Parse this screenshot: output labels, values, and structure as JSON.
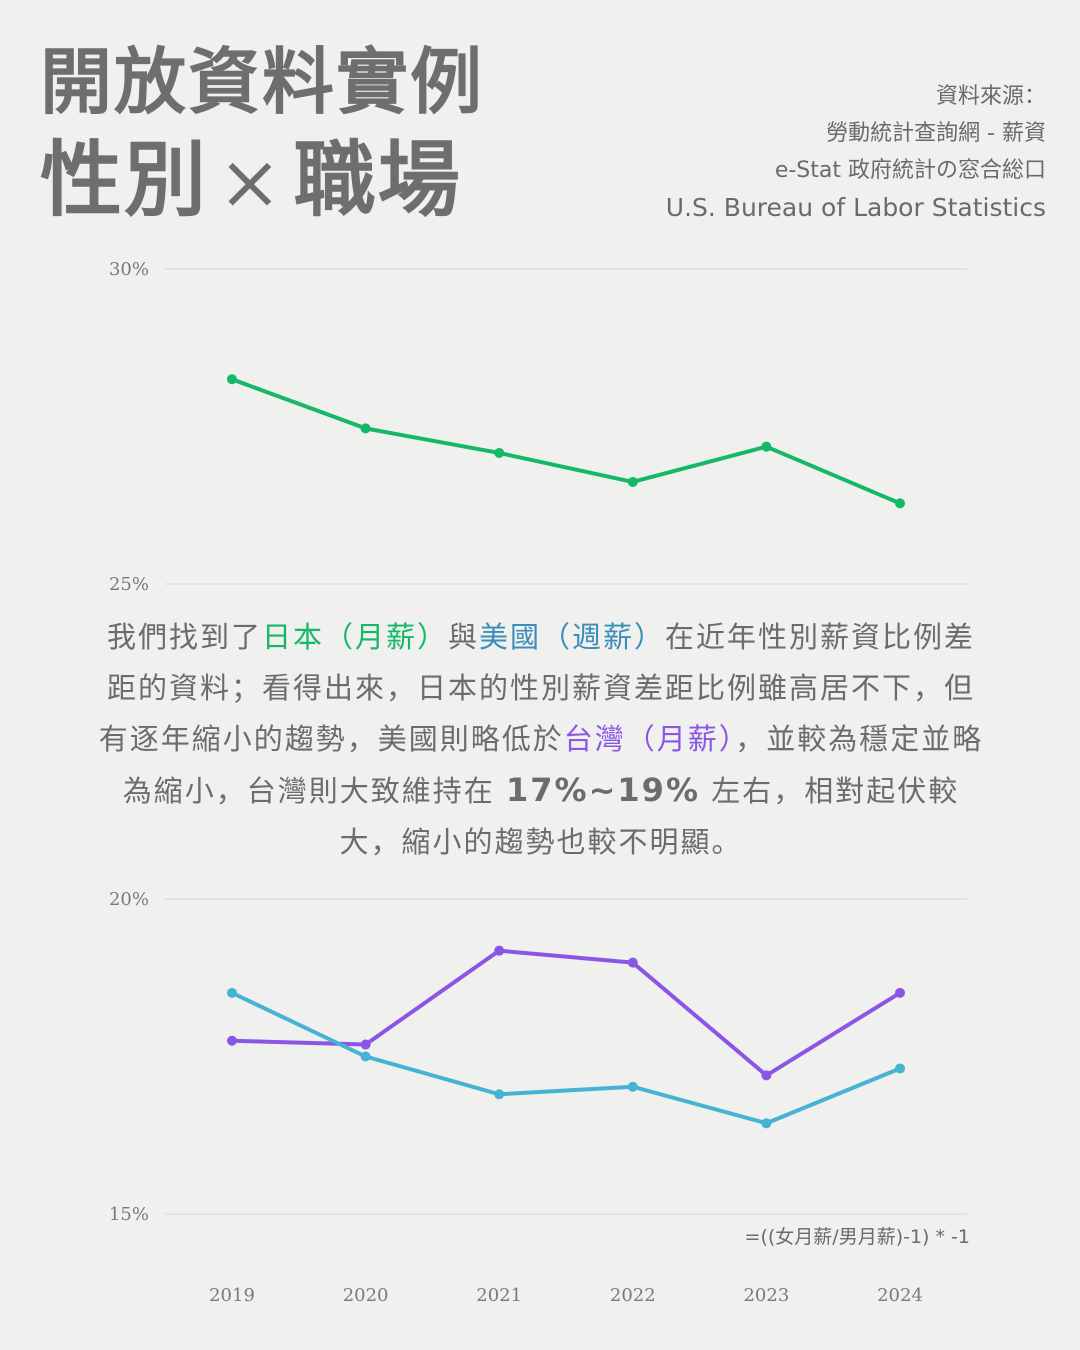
{
  "header": {
    "title_line1": "開放資料實例",
    "title_line2_a": "性別",
    "title_line2_times": "×",
    "title_line2_b": "職場"
  },
  "sources": {
    "label": "資料來源：",
    "line1": "勞動統計查詢網 - 薪資",
    "line2": "e-Stat 政府統計の窓合総口",
    "line3": "U.S. Bureau of Labor Statistics"
  },
  "narrative": {
    "p1": "我們找到了",
    "jp": "日本（月薪）",
    "p2": "與",
    "us": "美國（週薪）",
    "p3": "在近年性別薪資比例差距的資料；看得出來，日本的性別薪資差距比例雖高居不下，但有逐年縮小的趨勢，美國則略低於",
    "tw": "台灣（月薪）",
    "p4": "，並較為穩定並略為縮小，台灣則大致維持在",
    "range": "17%~19%",
    "p5": "左右，相對起伏較大，縮小的趨勢也較不明顯。"
  },
  "formula": "=((女月薪/男月薪)-1) * -1",
  "colors": {
    "japan": "#14b866",
    "usa": "#47b3d4",
    "taiwan": "#8b56e6",
    "grid": "#d6d6d6",
    "background": "#f0f0ee"
  },
  "chart_data": [
    {
      "type": "line",
      "x": [
        "2019",
        "2020",
        "2021",
        "2022",
        "2023",
        "2024"
      ],
      "ylim": [
        25,
        30
      ],
      "yticks": [
        "30%",
        "25%"
      ],
      "grid": true,
      "series": [
        {
          "key": "japan",
          "values": [
            28.25,
            27.47,
            27.08,
            26.62,
            27.18,
            26.28
          ]
        }
      ]
    },
    {
      "type": "line",
      "x": [
        "2019",
        "2020",
        "2021",
        "2022",
        "2023",
        "2024"
      ],
      "ylim": [
        15,
        20
      ],
      "yticks": [
        "20%",
        "15%"
      ],
      "grid": true,
      "series": [
        {
          "key": "taiwan",
          "values": [
            17.75,
            17.69,
            19.18,
            18.99,
            17.2,
            18.51
          ]
        },
        {
          "key": "usa",
          "values": [
            18.51,
            17.5,
            16.9,
            17.02,
            16.44,
            17.31
          ]
        }
      ]
    }
  ]
}
